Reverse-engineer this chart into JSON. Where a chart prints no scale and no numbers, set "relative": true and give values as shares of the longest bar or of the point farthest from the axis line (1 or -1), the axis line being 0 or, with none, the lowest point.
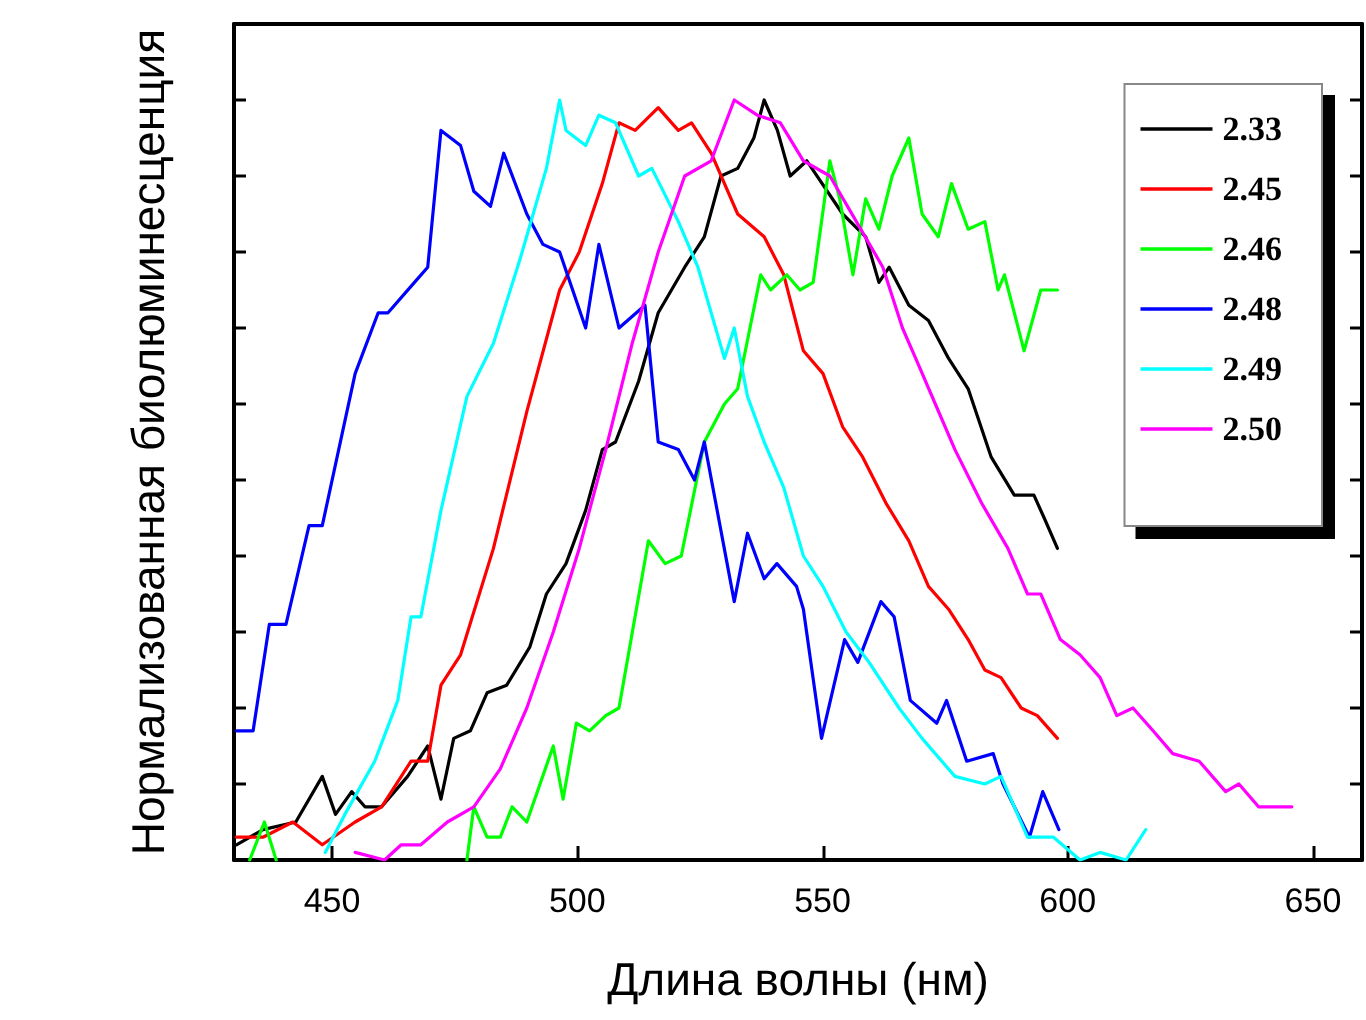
{
  "chart_data": {
    "type": "line",
    "relative": true,
    "xlabel": "Длина волны (нм)",
    "ylabel": "Нормализованная биолюминесценция",
    "xlim": [
      430,
      660
    ],
    "xticks": [
      450,
      500,
      550,
      600,
      650
    ],
    "legend": "top right",
    "grid": false,
    "marker": "none",
    "line_style": "solid",
    "series": [
      {
        "name": "2.33",
        "color": "#000000",
        "x": [
          430.5,
          435.9,
          442.6,
          448.0,
          450.7,
          454.0,
          456.7,
          460.1,
          465.4,
          469.5,
          472.2,
          474.8,
          478.2,
          481.6,
          485.6,
          490.3,
          493.7,
          497.7,
          501.7,
          505.1,
          507.8,
          512.5,
          516.5,
          521.9,
          525.9,
          529.3,
          532.7,
          536.0,
          538.1,
          540.8,
          543.4,
          546.8,
          554.1,
          558.8,
          561.5,
          563.6,
          567.6,
          571.6,
          575.7,
          579.7,
          584.4,
          589.1,
          591.1,
          593.1,
          595.2,
          597.9
        ],
        "values": [
          0.02,
          0.04,
          0.05,
          0.11,
          0.06,
          0.09,
          0.07,
          0.07,
          0.11,
          0.15,
          0.08,
          0.16,
          0.17,
          0.22,
          0.23,
          0.28,
          0.35,
          0.39,
          0.46,
          0.54,
          0.55,
          0.63,
          0.72,
          0.78,
          0.82,
          0.9,
          0.91,
          0.95,
          1.0,
          0.96,
          0.9,
          0.92,
          0.85,
          0.82,
          0.76,
          0.78,
          0.73,
          0.71,
          0.66,
          0.62,
          0.53,
          0.48,
          0.48,
          0.48,
          0.45,
          0.41
        ]
      },
      {
        "name": "2.45",
        "color": "#ff0000",
        "x": [
          430.5,
          435.9,
          442.0,
          448.0,
          454.7,
          460.1,
          466.1,
          469.5,
          472.2,
          476.2,
          482.9,
          489.7,
          496.4,
          500.4,
          505.1,
          508.5,
          511.8,
          516.5,
          520.6,
          523.3,
          527.3,
          532.7,
          538.1,
          542.1,
          546.1,
          550.1,
          554.1,
          558.2,
          562.9,
          567.6,
          571.6,
          575.7,
          579.7,
          583.1,
          586.4,
          590.5,
          593.8,
          597.9
        ],
        "values": [
          0.03,
          0.03,
          0.05,
          0.02,
          0.05,
          0.07,
          0.13,
          0.13,
          0.23,
          0.27,
          0.41,
          0.59,
          0.75,
          0.8,
          0.89,
          0.97,
          0.96,
          0.99,
          0.96,
          0.97,
          0.93,
          0.85,
          0.82,
          0.77,
          0.67,
          0.64,
          0.57,
          0.53,
          0.47,
          0.42,
          0.36,
          0.33,
          0.29,
          0.25,
          0.24,
          0.2,
          0.19,
          0.16
        ]
      },
      {
        "name": "2.46",
        "color": "#00ff00",
        "x": [
          433.2,
          436.2,
          438.6,
          452.0,
          477.5,
          478.9,
          481.6,
          484.3,
          486.7,
          489.7,
          495.1,
          497.1,
          499.8,
          502.5,
          505.8,
          508.5,
          514.5,
          517.9,
          521.2,
          525.9,
          530.0,
          532.7,
          537.4,
          539.4,
          542.7,
          545.4,
          548.1,
          551.5,
          553.5,
          556.2,
          558.8,
          561.5,
          564.2,
          567.6,
          570.3,
          573.6,
          576.3,
          579.7,
          583.1,
          585.8,
          587.1,
          591.1,
          594.5,
          597.9
        ],
        "values": [
          0.0,
          0.05,
          0.0,
          null,
          0.0,
          0.07,
          0.03,
          0.03,
          0.07,
          0.05,
          0.15,
          0.08,
          0.18,
          0.17,
          0.19,
          0.2,
          0.42,
          0.39,
          0.4,
          0.55,
          0.6,
          0.62,
          0.77,
          0.75,
          0.77,
          0.75,
          0.76,
          0.92,
          0.87,
          0.77,
          0.87,
          0.83,
          0.9,
          0.95,
          0.85,
          0.82,
          0.89,
          0.83,
          0.84,
          0.75,
          0.77,
          0.67,
          0.75,
          0.75
        ]
      },
      {
        "name": "2.48",
        "color": "#0000ff",
        "x": [
          430.5,
          433.9,
          437.2,
          440.6,
          445.3,
          448.0,
          454.7,
          459.4,
          461.4,
          466.8,
          469.5,
          472.2,
          474.2,
          476.2,
          478.9,
          482.3,
          485.0,
          489.7,
          493.0,
          496.4,
          501.7,
          504.4,
          508.5,
          513.8,
          516.5,
          520.6,
          523.9,
          525.9,
          532.0,
          534.7,
          538.1,
          540.7,
          544.7,
          546.1,
          549.8,
          554.5,
          557.2,
          561.9,
          564.6,
          567.9,
          573.3,
          575.3,
          579.4,
          584.8,
          586.8,
          592.2,
          594.9,
          598.2
        ],
        "values": [
          0.17,
          0.17,
          0.31,
          0.31,
          0.44,
          0.44,
          0.64,
          0.72,
          0.72,
          0.76,
          0.78,
          0.96,
          0.95,
          0.94,
          0.88,
          0.86,
          0.93,
          0.85,
          0.81,
          0.8,
          0.7,
          0.81,
          0.7,
          0.73,
          0.55,
          0.54,
          0.5,
          0.55,
          0.34,
          0.43,
          0.37,
          0.39,
          0.36,
          0.33,
          0.16,
          0.29,
          0.26,
          0.34,
          0.32,
          0.21,
          0.18,
          0.21,
          0.13,
          0.14,
          0.1,
          0.03,
          0.09,
          0.04
        ]
      },
      {
        "name": "2.49",
        "color": "#00ffff",
        "x": [
          448.6,
          452.6,
          458.7,
          463.4,
          466.1,
          468.1,
          472.2,
          477.5,
          482.9,
          488.3,
          493.7,
          496.4,
          497.7,
          501.7,
          504.4,
          507.8,
          512.5,
          515.2,
          520.6,
          524.6,
          530.0,
          532.0,
          534.7,
          538.1,
          542.1,
          546.1,
          550.1,
          554.8,
          559.5,
          565.6,
          570.3,
          577.0,
          583.1,
          586.4,
          591.8,
          597.1,
          602.5,
          606.6,
          611.9,
          615.9
        ],
        "values": [
          0.01,
          0.06,
          0.13,
          0.21,
          0.32,
          0.32,
          0.46,
          0.61,
          0.68,
          0.79,
          0.91,
          1.0,
          0.96,
          0.94,
          0.98,
          0.97,
          0.9,
          0.91,
          0.84,
          0.78,
          0.66,
          0.7,
          0.61,
          0.55,
          0.49,
          0.4,
          0.36,
          0.3,
          0.26,
          0.2,
          0.16,
          0.11,
          0.1,
          0.11,
          0.03,
          0.03,
          0.0,
          0.01,
          0.0,
          0.04
        ]
      },
      {
        "name": "2.50",
        "color": "#ff00ff",
        "x": [
          454.7,
          460.7,
          464.1,
          468.1,
          473.5,
          478.9,
          484.3,
          489.7,
          495.1,
          500.4,
          505.8,
          511.2,
          516.5,
          521.9,
          527.3,
          532.0,
          536.7,
          541.4,
          546.1,
          551.5,
          556.9,
          562.3,
          566.3,
          569.0,
          573.0,
          577.0,
          582.4,
          587.8,
          591.8,
          594.5,
          598.5,
          602.5,
          606.6,
          610.0,
          613.3,
          617.4,
          621.4,
          626.8,
          632.2,
          634.9,
          638.9,
          643.0,
          645.7
        ],
        "values": [
          0.01,
          0.0,
          0.02,
          0.02,
          0.05,
          0.07,
          0.12,
          0.2,
          0.3,
          0.41,
          0.54,
          0.68,
          0.8,
          0.9,
          0.92,
          1.0,
          0.98,
          0.97,
          0.92,
          0.9,
          0.84,
          0.78,
          0.7,
          0.66,
          0.6,
          0.54,
          0.47,
          0.41,
          0.35,
          0.35,
          0.29,
          0.27,
          0.24,
          0.19,
          0.2,
          0.17,
          0.14,
          0.13,
          0.09,
          0.1,
          0.07,
          0.07,
          0.07
        ]
      }
    ]
  }
}
